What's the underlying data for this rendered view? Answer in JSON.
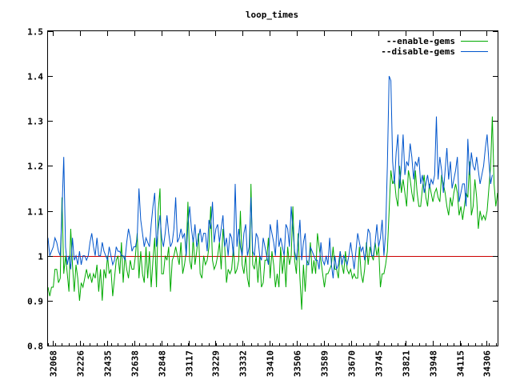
{
  "chart_data": {
    "type": "line",
    "title": "loop_times",
    "xlabel": "",
    "ylabel": "",
    "ylim": [
      0.8,
      1.5
    ],
    "y_ticks": [
      0.8,
      0.9,
      1,
      1.1,
      1.2,
      1.3,
      1.4,
      1.5
    ],
    "y_tick_labels": [
      "0.8",
      "0.9",
      "1",
      "1.1",
      "1.2",
      "1.3",
      "1.4",
      "1.5"
    ],
    "x_tick_labels": [
      "32068",
      "32226",
      "32435",
      "32638",
      "32848",
      "33117",
      "33229",
      "33332",
      "33410",
      "33506",
      "33589",
      "33670",
      "33745",
      "33821",
      "33948",
      "34115",
      "34306"
    ],
    "grid": false,
    "legend_position": "top-right",
    "reference_line": {
      "y": 1.0,
      "color": "#cc0000"
    },
    "series": [
      {
        "name": "--enable-gems",
        "color": "#00aa00",
        "values": [
          0.93,
          0.91,
          0.93,
          0.93,
          0.97,
          0.97,
          0.94,
          0.95,
          1.13,
          0.96,
          1.0,
          0.96,
          0.92,
          1.06,
          0.98,
          0.92,
          0.98,
          0.95,
          0.9,
          0.94,
          0.93,
          0.95,
          0.97,
          0.95,
          0.96,
          0.94,
          0.96,
          0.95,
          0.98,
          0.92,
          0.97,
          0.9,
          0.97,
          0.95,
          1.0,
          0.96,
          0.97,
          0.91,
          0.95,
          0.99,
          1.0,
          0.96,
          1.03,
          0.94,
          1.0,
          0.97,
          0.95,
          0.99,
          0.97,
          0.97,
          1.0,
          1.05,
          0.95,
          1.01,
          0.96,
          0.94,
          1.02,
          0.95,
          1.01,
          0.93,
          0.99,
          1.04,
          0.93,
          1.1,
          1.15,
          0.96,
          0.96,
          1.0,
          0.99,
          1.02,
          0.92,
          0.99,
          1.0,
          1.02,
          1.0,
          0.98,
          1.03,
          0.96,
          0.98,
          1.01,
          1.12,
          0.99,
          0.97,
          1.04,
          0.98,
          1.01,
          1.05,
          0.96,
          0.95,
          1.0,
          0.98,
          0.99,
          1.02,
          1.11,
          0.99,
          0.97,
          0.98,
          1.0,
          1.03,
          0.97,
          1.06,
          1.02,
          0.94,
          0.97,
          0.96,
          0.97,
          1.02,
          0.96,
          0.97,
          0.99,
          1.1,
          0.98,
          0.96,
          1.0,
          0.95,
          0.93,
          1.16,
          0.98,
          0.97,
          1.0,
          0.94,
          1.0,
          0.93,
          0.94,
          0.99,
          0.99,
          1.04,
          0.95,
          1.01,
          0.98,
          0.93,
          0.96,
          0.93,
          1.02,
          0.96,
          1.0,
          0.93,
          1.02,
          0.98,
          1.0,
          1.11,
          0.99,
          0.96,
          1.05,
          0.95,
          0.88,
          0.98,
          0.92,
          0.99,
          0.98,
          1.03,
          0.96,
          0.99,
          0.96,
          1.05,
          1.02,
          0.99,
          0.96,
          0.93,
          0.96,
          0.96,
          0.97,
          0.98,
          1.02,
          0.97,
          0.97,
          0.95,
          1.01,
          0.98,
          0.96,
          1.01,
          0.97,
          0.96,
          0.97,
          0.95,
          0.96,
          0.95,
          0.95,
          1.02,
          0.96,
          0.94,
          0.97,
          1.03,
          0.98,
          1.02,
          1.0,
          0.99,
          1.03,
          1.0,
          1.02,
          0.93,
          0.96,
          0.96,
          0.98,
          1.01,
          1.1,
          1.19,
          1.16,
          1.17,
          1.13,
          1.11,
          1.2,
          1.14,
          1.17,
          1.14,
          1.11,
          1.19,
          1.17,
          1.14,
          1.12,
          1.19,
          1.14,
          1.11,
          1.11,
          1.15,
          1.18,
          1.13,
          1.11,
          1.16,
          1.14,
          1.12,
          1.14,
          1.15,
          1.13,
          1.12,
          1.18,
          1.16,
          1.14,
          1.11,
          1.09,
          1.13,
          1.11,
          1.14,
          1.16,
          1.14,
          1.09,
          1.11,
          1.08,
          1.11,
          1.14,
          1.13,
          1.21,
          1.09,
          1.11,
          1.17,
          1.13,
          1.06,
          1.1,
          1.08,
          1.09,
          1.08,
          1.1,
          1.15,
          1.2,
          1.31,
          1.16,
          1.11,
          1.14
        ]
      },
      {
        "name": "--disable-gems",
        "color": "#0055cc",
        "values": [
          1.04,
          1.0,
          1.01,
          1.02,
          1.04,
          1.03,
          1.01,
          1.0,
          1.1,
          1.22,
          1.02,
          0.98,
          1.0,
          0.97,
          1.04,
          0.99,
          1.0,
          0.98,
          1.01,
          0.98,
          1.0,
          1.0,
          0.99,
          1.0,
          1.03,
          1.05,
          1.02,
          1.0,
          1.04,
          1.0,
          1.0,
          1.03,
          1.01,
          1.0,
          0.99,
          1.02,
          1.0,
          0.98,
          0.99,
          1.02,
          1.01,
          1.01,
          1.0,
          1.0,
          0.99,
          1.03,
          1.06,
          1.04,
          1.01,
          1.02,
          1.02,
          1.04,
          1.15,
          1.08,
          1.05,
          1.02,
          1.04,
          1.03,
          1.02,
          1.07,
          1.11,
          1.14,
          1.02,
          1.06,
          1.09,
          1.04,
          1.02,
          1.05,
          1.09,
          1.05,
          1.02,
          1.03,
          1.06,
          1.13,
          1.03,
          1.04,
          1.06,
          1.04,
          1.05,
          1.0,
          1.07,
          1.11,
          1.06,
          1.03,
          1.07,
          1.02,
          1.04,
          1.06,
          1.03,
          1.05,
          1.05,
          1.01,
          1.08,
          1.06,
          1.12,
          1.03,
          1.06,
          1.07,
          1.03,
          1.06,
          1.09,
          1.02,
          1.04,
          1.0,
          1.05,
          1.04,
          1.0,
          1.16,
          1.02,
          1.06,
          1.02,
          1.0,
          1.05,
          1.07,
          1.0,
          1.02,
          1.13,
          1.01,
          1.0,
          1.05,
          1.04,
          1.0,
          0.99,
          1.04,
          1.02,
          1.0,
          0.98,
          1.07,
          1.05,
          1.03,
          1.0,
          1.08,
          1.02,
          1.04,
          1.02,
          1.0,
          1.07,
          1.06,
          1.02,
          1.11,
          1.06,
          1.01,
          0.99,
          1.03,
          1.08,
          0.99,
          1.03,
          1.05,
          0.98,
          0.98,
          1.02,
          1.01,
          1.0,
          0.99,
          0.99,
          0.97,
          1.03,
          0.99,
          0.98,
          1.0,
          0.98,
          1.04,
          0.98,
          0.95,
          1.0,
          0.97,
          0.98,
          1.01,
          0.98,
          1.0,
          0.99,
          0.98,
          1.0,
          1.03,
          1.0,
          0.97,
          1.01,
          1.05,
          1.03,
          1.01,
          1.02,
          0.99,
          1.02,
          1.06,
          1.05,
          1.0,
          1.0,
          1.03,
          1.07,
          1.02,
          1.04,
          1.08,
          1.0,
          1.05,
          1.2,
          1.4,
          1.39,
          1.21,
          1.16,
          1.23,
          1.27,
          1.15,
          1.2,
          1.27,
          1.18,
          1.21,
          1.2,
          1.25,
          1.22,
          1.17,
          1.21,
          1.2,
          1.22,
          1.16,
          1.18,
          1.14,
          1.16,
          1.18,
          1.15,
          1.17,
          1.16,
          1.18,
          1.31,
          1.17,
          1.22,
          1.19,
          1.14,
          1.19,
          1.24,
          1.17,
          1.21,
          1.15,
          1.17,
          1.19,
          1.22,
          1.12,
          1.14,
          1.16,
          1.16,
          1.11,
          1.26,
          1.18,
          1.23,
          1.2,
          1.19,
          1.22,
          1.19,
          1.16,
          1.18,
          1.2,
          1.24,
          1.27,
          1.21,
          1.16,
          1.18
        ]
      }
    ]
  }
}
